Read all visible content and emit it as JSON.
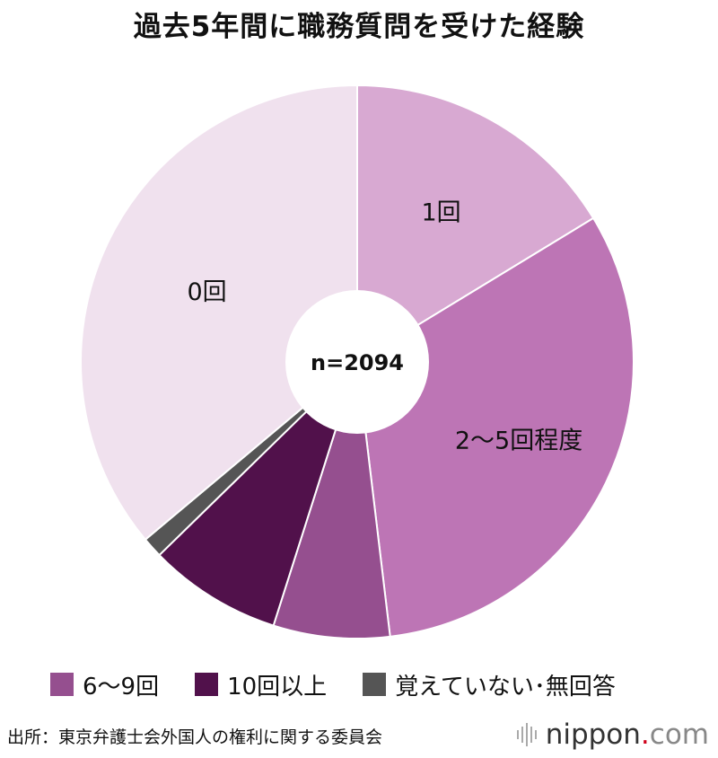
{
  "chart_data": {
    "type": "pie",
    "title": "過去5年間に職務質問を受けた経験",
    "center_label": "n=2094",
    "slices": [
      {
        "label": "1回",
        "value": 16.3,
        "color": "#d8a9d2",
        "legend": false,
        "show_label": true
      },
      {
        "label": "2～5回程度",
        "value": 31.8,
        "color": "#bd75b5",
        "legend": false,
        "show_label": true
      },
      {
        "label": "6～9回",
        "value": 6.8,
        "color": "#954f8f",
        "legend": true,
        "show_label": false
      },
      {
        "label": "10回以上",
        "value": 7.8,
        "color": "#51114b",
        "legend": true,
        "show_label": false
      },
      {
        "label": "覚えていない･無回答",
        "value": 1.2,
        "color": "#555555",
        "legend": true,
        "show_label": false
      },
      {
        "label": "0回",
        "value": 36.1,
        "color": "#f0e1ee",
        "legend": false,
        "show_label": true
      }
    ],
    "legend_placement": "bottom"
  },
  "footer": {
    "source": "出所：東京弁護士会外国人の権利に関する委員会",
    "logo": {
      "name": "nippon",
      "dot": ".",
      "tld": "com"
    }
  }
}
